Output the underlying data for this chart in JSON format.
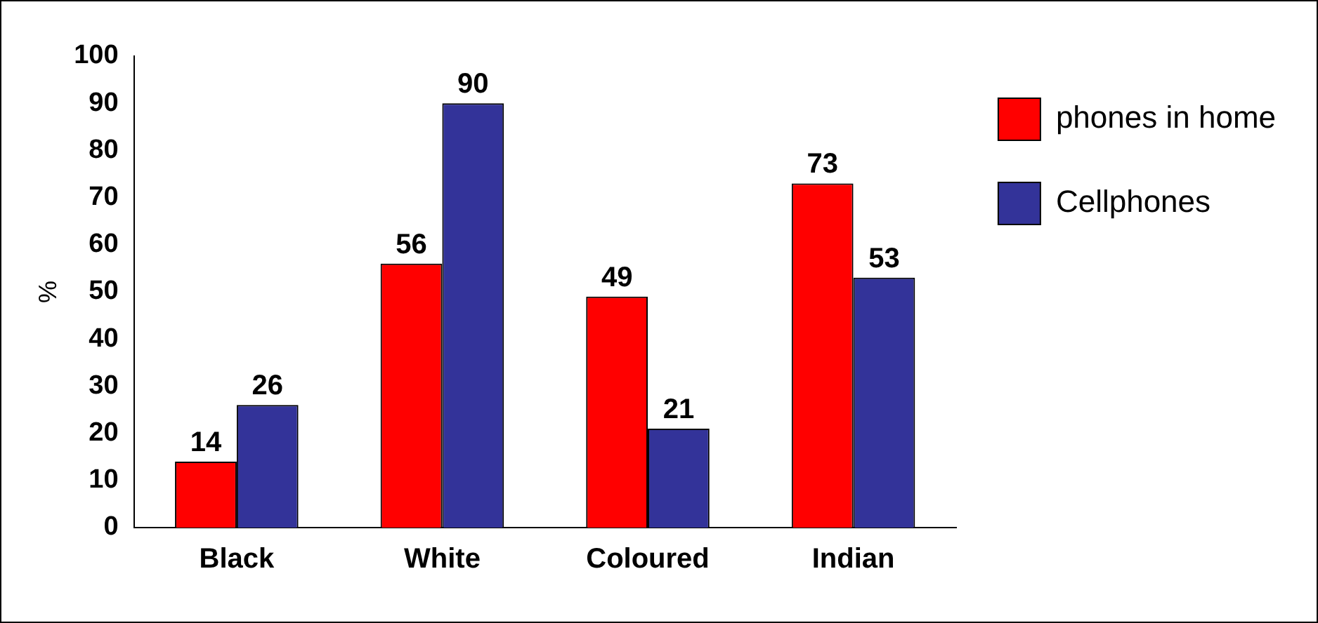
{
  "chart_data": {
    "type": "bar",
    "ylabel": "%",
    "categories": [
      "Black",
      "White",
      "Coloured",
      "Indian"
    ],
    "series": [
      {
        "name": "phones in home",
        "color": "#ff0000",
        "values": [
          14,
          56,
          49,
          73
        ]
      },
      {
        "name": "Cellphones",
        "color": "#333399",
        "values": [
          26,
          90,
          21,
          53
        ]
      }
    ],
    "ylim": [
      0,
      100
    ],
    "yticks": [
      0,
      10,
      20,
      30,
      40,
      50,
      60,
      70,
      80,
      90,
      100
    ],
    "grid": false,
    "legend": "top right",
    "data_labels": true
  }
}
